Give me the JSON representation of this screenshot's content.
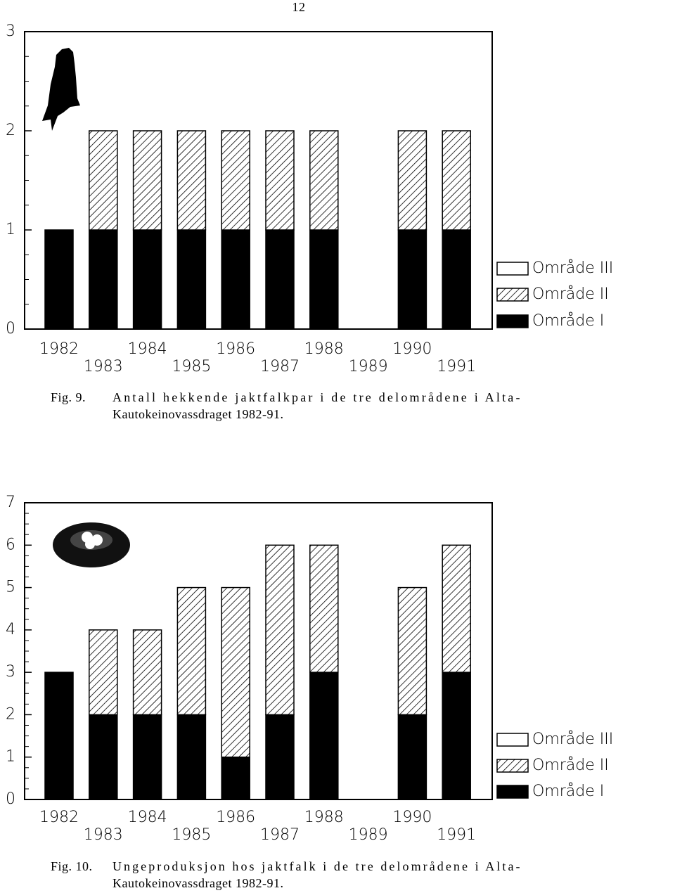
{
  "page_number": "12",
  "chart_data": [
    {
      "type": "stacked-bar",
      "categories": [
        "1982",
        "1983",
        "1984",
        "1985",
        "1986",
        "1987",
        "1988",
        "1989",
        "1990",
        "1991"
      ],
      "series": [
        {
          "name": "Område I",
          "color": "#000000",
          "values": [
            1,
            1,
            1,
            1,
            1,
            1,
            1,
            0,
            1,
            1
          ]
        },
        {
          "name": "Område II",
          "color": "#ffffff",
          "pattern": "hatch",
          "values": [
            0,
            1,
            1,
            1,
            1,
            1,
            1,
            0,
            1,
            1
          ]
        },
        {
          "name": "Område III",
          "color": "#ffffff",
          "values": [
            0,
            0,
            0,
            0,
            0,
            0,
            0,
            0,
            0,
            0
          ]
        }
      ],
      "ylim": [
        0,
        3
      ],
      "yticks": [
        0,
        1,
        2,
        3
      ],
      "fig_label": "Fig. 9.",
      "caption": [
        "Antall hekkende jaktfalkpar i de tre delområdene i Alta-",
        "Kautokeinovassdraget 1982-91."
      ]
    },
    {
      "type": "stacked-bar",
      "categories": [
        "1982",
        "1983",
        "1984",
        "1985",
        "1986",
        "1987",
        "1988",
        "1989",
        "1990",
        "1991"
      ],
      "series": [
        {
          "name": "Område I",
          "color": "#000000",
          "values": [
            3,
            2,
            2,
            2,
            1,
            2,
            3,
            0,
            2,
            3
          ]
        },
        {
          "name": "Område II",
          "color": "#ffffff",
          "pattern": "hatch",
          "values": [
            0,
            2,
            2,
            3,
            4,
            4,
            3,
            0,
            3,
            3
          ]
        },
        {
          "name": "Område III",
          "color": "#ffffff",
          "values": [
            0,
            0,
            0,
            0,
            0,
            0,
            0,
            0,
            0,
            0
          ]
        }
      ],
      "ylim": [
        0,
        7
      ],
      "yticks": [
        0,
        1,
        2,
        3,
        4,
        5,
        6,
        7
      ],
      "fig_label": "Fig. 10.",
      "caption": [
        "Ungeproduksjon hos jaktfalk i de tre delområdene i Alta-",
        "Kautokeinovassdraget 1982-91."
      ]
    }
  ]
}
